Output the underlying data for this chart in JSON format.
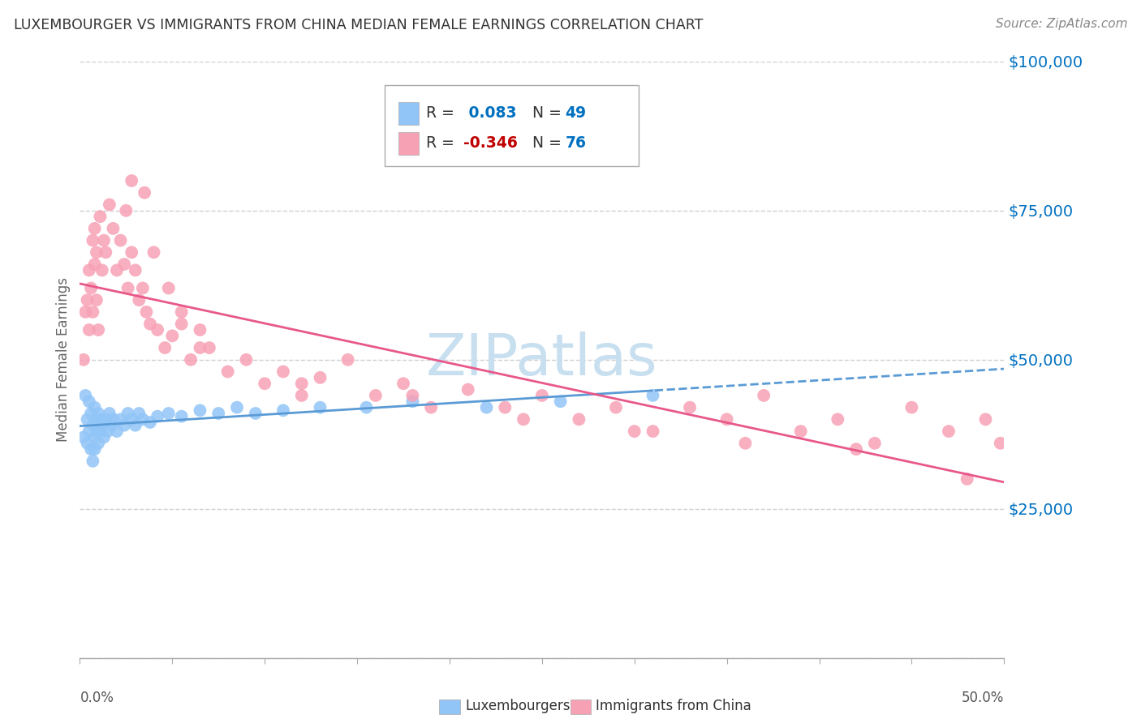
{
  "title": "LUXEMBOURGER VS IMMIGRANTS FROM CHINA MEDIAN FEMALE EARNINGS CORRELATION CHART",
  "source": "Source: ZipAtlas.com",
  "ylabel": "Median Female Earnings",
  "xmin": 0.0,
  "xmax": 0.5,
  "ymin": 0,
  "ymax": 100000,
  "yticks": [
    0,
    25000,
    50000,
    75000,
    100000
  ],
  "ytick_labels": [
    "",
    "$25,000",
    "$50,000",
    "$75,000",
    "$100,000"
  ],
  "series1_label": "Luxembourgers",
  "series2_label": "Immigrants from China",
  "series1_color": "#92c5f7",
  "series2_color": "#f7a1b5",
  "series1_R": 0.083,
  "series1_N": 49,
  "series2_R": -0.346,
  "series2_N": 76,
  "series1_line_color": "#5b9bd5",
  "series2_line_color": "#e8588a",
  "legend_R1_color": "#0070C0",
  "legend_R2_color": "#c00000",
  "legend_N_color": "#0070C0",
  "watermark_text": "ZIPatlas",
  "watermark_color": "#c8dff0",
  "background_color": "#ffffff",
  "grid_color": "#d0d0d0",
  "series1_x": [
    0.002,
    0.003,
    0.004,
    0.004,
    0.005,
    0.005,
    0.006,
    0.006,
    0.007,
    0.007,
    0.008,
    0.008,
    0.008,
    0.009,
    0.009,
    0.01,
    0.01,
    0.011,
    0.011,
    0.012,
    0.013,
    0.014,
    0.015,
    0.016,
    0.017,
    0.018,
    0.02,
    0.022,
    0.024,
    0.026,
    0.028,
    0.03,
    0.032,
    0.034,
    0.038,
    0.042,
    0.048,
    0.055,
    0.065,
    0.075,
    0.085,
    0.095,
    0.11,
    0.13,
    0.155,
    0.18,
    0.22,
    0.26,
    0.31
  ],
  "series1_y": [
    37000,
    44000,
    36000,
    40000,
    43000,
    38000,
    41000,
    35000,
    39000,
    33000,
    42000,
    37000,
    35000,
    40000,
    38000,
    41000,
    36000,
    40000,
    38000,
    39000,
    37000,
    40000,
    38000,
    41000,
    39000,
    40000,
    38000,
    40000,
    39000,
    41000,
    40000,
    39000,
    41000,
    40000,
    39500,
    40500,
    41000,
    40500,
    41500,
    41000,
    42000,
    41000,
    41500,
    42000,
    42000,
    43000,
    42000,
    43000,
    44000
  ],
  "series2_x": [
    0.002,
    0.003,
    0.004,
    0.005,
    0.005,
    0.006,
    0.007,
    0.007,
    0.008,
    0.008,
    0.009,
    0.009,
    0.01,
    0.011,
    0.012,
    0.013,
    0.014,
    0.016,
    0.018,
    0.02,
    0.022,
    0.024,
    0.026,
    0.028,
    0.03,
    0.032,
    0.034,
    0.036,
    0.038,
    0.042,
    0.046,
    0.05,
    0.055,
    0.06,
    0.065,
    0.07,
    0.08,
    0.09,
    0.1,
    0.11,
    0.12,
    0.13,
    0.145,
    0.16,
    0.175,
    0.19,
    0.21,
    0.23,
    0.25,
    0.27,
    0.29,
    0.31,
    0.33,
    0.35,
    0.37,
    0.39,
    0.41,
    0.43,
    0.45,
    0.47,
    0.49,
    0.498,
    0.025,
    0.028,
    0.035,
    0.04,
    0.048,
    0.055,
    0.065,
    0.12,
    0.18,
    0.24,
    0.3,
    0.36,
    0.42,
    0.48
  ],
  "series2_y": [
    50000,
    58000,
    60000,
    55000,
    65000,
    62000,
    70000,
    58000,
    66000,
    72000,
    60000,
    68000,
    55000,
    74000,
    65000,
    70000,
    68000,
    76000,
    72000,
    65000,
    70000,
    66000,
    62000,
    68000,
    65000,
    60000,
    62000,
    58000,
    56000,
    55000,
    52000,
    54000,
    58000,
    50000,
    55000,
    52000,
    48000,
    50000,
    46000,
    48000,
    44000,
    47000,
    50000,
    44000,
    46000,
    42000,
    45000,
    42000,
    44000,
    40000,
    42000,
    38000,
    42000,
    40000,
    44000,
    38000,
    40000,
    36000,
    42000,
    38000,
    40000,
    36000,
    75000,
    80000,
    78000,
    68000,
    62000,
    56000,
    52000,
    46000,
    44000,
    40000,
    38000,
    36000,
    35000,
    30000
  ]
}
